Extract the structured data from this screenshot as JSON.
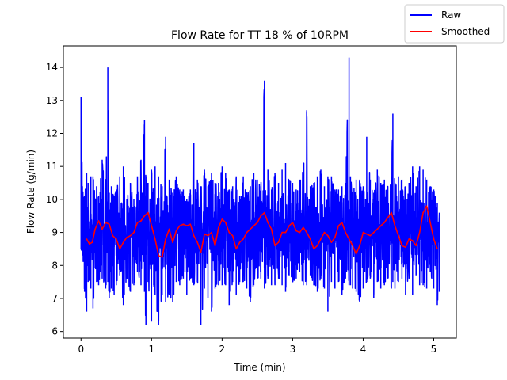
{
  "chart_data": {
    "type": "line",
    "title": "Flow Rate for TT 18 % of 10RPM",
    "xlabel": "Time (min)",
    "ylabel": "Flow Rate (g/min)",
    "xlim": [
      -0.25,
      5.32
    ],
    "ylim": [
      5.8,
      14.65
    ],
    "xticks": [
      0,
      1,
      2,
      3,
      4,
      5
    ],
    "yticks": [
      6,
      7,
      8,
      9,
      10,
      11,
      12,
      13,
      14
    ],
    "legend_position": "top-right",
    "grid": false,
    "series": [
      {
        "name": "Raw",
        "color": "#0000ff",
        "range_x": [
          0.0,
          5.08
        ],
        "x": [
          0.0,
          0.02,
          0.05,
          0.08,
          0.1,
          0.14,
          0.17,
          0.22,
          0.25,
          0.3,
          0.35,
          0.38,
          0.4,
          0.43,
          0.47,
          0.5,
          0.55,
          0.6,
          0.65,
          0.7,
          0.75,
          0.8,
          0.85,
          0.9,
          0.92,
          0.95,
          1.0,
          1.03,
          1.05,
          1.1,
          1.15,
          1.2,
          1.25,
          1.3,
          1.35,
          1.4,
          1.45,
          1.5,
          1.55,
          1.6,
          1.65,
          1.7,
          1.75,
          1.8,
          1.85,
          1.9,
          1.95,
          2.0,
          2.05,
          2.1,
          2.15,
          2.2,
          2.25,
          2.3,
          2.35,
          2.4,
          2.45,
          2.5,
          2.55,
          2.6,
          2.65,
          2.7,
          2.75,
          2.8,
          2.85,
          2.9,
          2.95,
          3.0,
          3.05,
          3.1,
          3.15,
          3.2,
          3.25,
          3.3,
          3.35,
          3.4,
          3.45,
          3.5,
          3.55,
          3.6,
          3.65,
          3.7,
          3.75,
          3.8,
          3.82,
          3.85,
          3.9,
          3.95,
          4.0,
          4.05,
          4.1,
          4.15,
          4.2,
          4.25,
          4.3,
          4.35,
          4.4,
          4.42,
          4.45,
          4.5,
          4.55,
          4.6,
          4.65,
          4.7,
          4.75,
          4.8,
          4.85,
          4.9,
          4.95,
          5.0,
          5.05,
          5.08
        ],
        "upper": [
          13.1,
          10.4,
          10.1,
          10.8,
          10.5,
          10.7,
          10.7,
          10.4,
          10.1,
          11.2,
          10.3,
          14.0,
          10.2,
          10.4,
          10.1,
          10.3,
          10.7,
          11.0,
          10.0,
          10.5,
          10.0,
          10.7,
          11.2,
          12.4,
          10.7,
          10.5,
          10.9,
          10.3,
          11.0,
          10.7,
          10.4,
          11.9,
          10.6,
          10.2,
          10.7,
          10.3,
          10.3,
          10.0,
          10.3,
          11.7,
          10.6,
          10.4,
          10.9,
          10.4,
          10.8,
          10.5,
          10.5,
          11.0,
          10.8,
          10.3,
          10.4,
          10.7,
          10.1,
          10.7,
          10.2,
          10.4,
          10.8,
          10.6,
          10.4,
          13.6,
          10.9,
          10.3,
          10.8,
          10.5,
          10.9,
          11.1,
          10.6,
          10.5,
          10.3,
          10.6,
          10.9,
          12.7,
          10.4,
          10.5,
          10.7,
          10.9,
          10.4,
          10.7,
          10.7,
          10.3,
          10.3,
          10.4,
          10.5,
          14.3,
          10.7,
          10.2,
          10.6,
          10.6,
          10.4,
          11.9,
          10.6,
          10.2,
          10.9,
          10.5,
          10.6,
          10.4,
          10.6,
          12.6,
          10.5,
          10.7,
          10.6,
          10.4,
          10.5,
          11.0,
          10.4,
          11.0,
          10.9,
          10.6,
          10.4,
          10.3,
          9.9,
          9.6
        ],
        "lower": [
          8.5,
          8.3,
          7.2,
          6.6,
          7.5,
          7.3,
          6.7,
          7.5,
          7.4,
          7.6,
          7.3,
          7.5,
          7.0,
          7.3,
          7.1,
          7.4,
          7.7,
          6.8,
          7.6,
          7.2,
          7.4,
          7.8,
          7.4,
          7.2,
          6.2,
          7.5,
          6.3,
          7.4,
          7.1,
          6.2,
          7.1,
          6.9,
          7.1,
          6.9,
          7.5,
          7.4,
          7.6,
          7.1,
          7.6,
          7.4,
          7.5,
          6.2,
          7.3,
          7.0,
          6.6,
          7.3,
          7.4,
          7.4,
          7.4,
          6.8,
          7.5,
          7.1,
          7.5,
          7.5,
          7.3,
          6.9,
          7.4,
          7.6,
          7.6,
          7.3,
          7.6,
          7.4,
          7.4,
          7.6,
          7.4,
          7.2,
          7.7,
          7.5,
          7.6,
          7.8,
          7.4,
          7.4,
          7.7,
          7.4,
          7.2,
          7.6,
          7.3,
          6.6,
          7.5,
          7.3,
          7.5,
          7.1,
          7.6,
          7.4,
          7.4,
          7.3,
          7.2,
          6.9,
          7.3,
          7.5,
          7.6,
          7.0,
          7.5,
          7.3,
          7.4,
          7.6,
          7.3,
          7.5,
          7.3,
          7.5,
          7.6,
          7.1,
          7.6,
          7.1,
          7.7,
          7.4,
          7.4,
          7.3,
          7.8,
          7.3,
          6.8,
          7.2
        ]
      },
      {
        "name": "Smoothed",
        "color": "#ff0000",
        "x": [
          0.08,
          0.12,
          0.16,
          0.2,
          0.25,
          0.3,
          0.35,
          0.4,
          0.45,
          0.5,
          0.55,
          0.6,
          0.65,
          0.7,
          0.75,
          0.8,
          0.85,
          0.9,
          0.95,
          1.0,
          1.05,
          1.1,
          1.15,
          1.2,
          1.25,
          1.3,
          1.35,
          1.4,
          1.45,
          1.5,
          1.55,
          1.6,
          1.65,
          1.7,
          1.75,
          1.8,
          1.85,
          1.9,
          1.95,
          2.0,
          2.05,
          2.1,
          2.15,
          2.2,
          2.25,
          2.3,
          2.35,
          2.4,
          2.45,
          2.5,
          2.55,
          2.6,
          2.65,
          2.7,
          2.75,
          2.8,
          2.85,
          2.9,
          2.95,
          3.0,
          3.05,
          3.1,
          3.15,
          3.2,
          3.25,
          3.3,
          3.35,
          3.4,
          3.45,
          3.5,
          3.55,
          3.6,
          3.65,
          3.7,
          3.75,
          3.8,
          3.85,
          3.9,
          3.95,
          4.0,
          4.05,
          4.1,
          4.15,
          4.2,
          4.25,
          4.3,
          4.35,
          4.4,
          4.45,
          4.5,
          4.55,
          4.6,
          4.65,
          4.7,
          4.75,
          4.8,
          4.85,
          4.9,
          4.95,
          5.0,
          5.05
        ],
        "y": [
          8.8,
          8.65,
          8.7,
          9.1,
          9.35,
          9.1,
          9.3,
          9.25,
          8.9,
          8.8,
          8.5,
          8.7,
          8.85,
          8.9,
          9.0,
          9.3,
          9.35,
          9.5,
          9.6,
          9.2,
          8.8,
          8.3,
          8.25,
          8.8,
          9.1,
          8.7,
          9.05,
          9.2,
          9.25,
          9.2,
          9.25,
          8.9,
          8.7,
          8.4,
          8.95,
          8.9,
          9.0,
          8.6,
          9.15,
          9.4,
          9.3,
          9.0,
          8.9,
          8.5,
          8.7,
          8.8,
          9.0,
          9.1,
          9.2,
          9.3,
          9.5,
          9.6,
          9.3,
          9.1,
          8.6,
          8.7,
          9.0,
          9.0,
          9.2,
          9.3,
          9.05,
          9.0,
          9.15,
          9.0,
          8.8,
          8.5,
          8.6,
          8.8,
          9.0,
          8.9,
          8.7,
          8.85,
          9.2,
          9.3,
          9.0,
          8.8,
          8.6,
          8.35,
          8.6,
          9.0,
          8.95,
          8.9,
          9.0,
          9.1,
          9.2,
          9.3,
          9.45,
          9.6,
          9.2,
          8.9,
          8.6,
          8.55,
          8.8,
          8.75,
          8.6,
          9.0,
          9.6,
          9.8,
          9.3,
          8.8,
          8.5
        ]
      }
    ]
  }
}
